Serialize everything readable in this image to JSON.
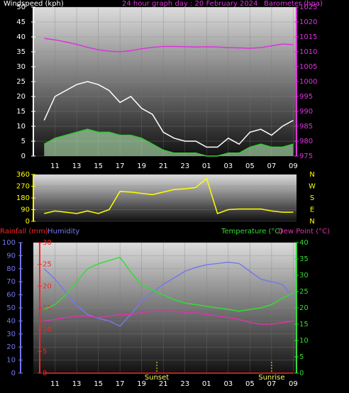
{
  "chart_data": [
    {
      "type": "line",
      "title": "24 hour graph day : 20 February 2024",
      "x": [
        10,
        11,
        12,
        13,
        14,
        15,
        16,
        17,
        18,
        19,
        20,
        21,
        22,
        23,
        24,
        25,
        26,
        27,
        28,
        29,
        30,
        31,
        32,
        33
      ],
      "xlim": [
        9,
        33.3
      ],
      "xticks": [
        11,
        13,
        15,
        17,
        19,
        21,
        23,
        {
          "value": 25,
          "label": "01"
        },
        {
          "value": 27,
          "label": "03"
        },
        {
          "value": 29,
          "label": "05"
        },
        {
          "value": 31,
          "label": "07"
        },
        {
          "value": 33,
          "label": "09"
        }
      ],
      "grid": true,
      "axes": [
        {
          "label": "Windspeed (kph)",
          "color": "#ffffff",
          "lim": [
            0,
            50
          ],
          "ticks": [
            0,
            5,
            10,
            15,
            20,
            25,
            30,
            35,
            40,
            45,
            50
          ]
        },
        {
          "label": "Barometer (hpa)",
          "color": "#dd33dd",
          "lim": [
            975,
            1025
          ],
          "ticks": [
            975,
            980,
            985,
            990,
            995,
            1000,
            1005,
            1010,
            1015,
            1020,
            1025
          ]
        }
      ],
      "series": [
        {
          "color": "#ffffff",
          "axis": 0,
          "values": [
            12,
            20,
            22,
            24,
            25,
            24,
            22,
            18,
            20,
            16,
            14,
            8,
            6,
            5,
            5,
            3,
            3,
            6,
            4,
            8,
            9,
            7,
            10,
            12
          ]
        },
        {
          "color": "#33cc33",
          "fill": "#b8ecb8",
          "axis": 0,
          "values": [
            4,
            6,
            7,
            8,
            9,
            8,
            8,
            7,
            7,
            6,
            4,
            2,
            1,
            1,
            1,
            0,
            0,
            1,
            1,
            3,
            4,
            3,
            3,
            4
          ]
        },
        {
          "color": "#dd33dd",
          "axis": 1,
          "values": [
            1014.5,
            1014,
            1013.3,
            1012.5,
            1011.5,
            1010.7,
            1010.2,
            1010,
            1010.4,
            1011,
            1011.5,
            1011.8,
            1011.8,
            1011.7,
            1011.6,
            1011.7,
            1011.6,
            1011.4,
            1011.3,
            1011.2,
            1011.4,
            1012,
            1012.6,
            1012.4
          ]
        }
      ]
    },
    {
      "type": "line",
      "x": [
        10,
        11,
        12,
        13,
        14,
        15,
        16,
        17,
        18,
        19,
        20,
        21,
        22,
        23,
        24,
        25,
        26,
        27,
        28,
        29,
        30,
        31,
        32,
        33
      ],
      "xlim": [
        9,
        33.3
      ],
      "grid": true,
      "axes": [
        {
          "color": "#ffff00",
          "lim": [
            0,
            360
          ],
          "ticks": [
            0,
            90,
            180,
            270,
            360
          ]
        }
      ],
      "compass": [
        "N",
        "W",
        "S",
        "E",
        "N"
      ],
      "series": [
        {
          "color": "#ffff00",
          "axis": 0,
          "values": [
            60,
            80,
            70,
            60,
            80,
            60,
            90,
            230,
            225,
            215,
            205,
            225,
            245,
            250,
            260,
            330,
            60,
            90,
            95,
            95,
            95,
            80,
            70,
            70
          ]
        }
      ]
    },
    {
      "type": "line",
      "x": [
        10,
        11,
        12,
        13,
        14,
        15,
        16,
        17,
        18,
        19,
        20,
        21,
        22,
        23,
        24,
        25,
        26,
        27,
        28,
        29,
        30,
        31,
        32,
        33
      ],
      "xlim": [
        9,
        33.3
      ],
      "xticks": [
        11,
        13,
        15,
        17,
        19,
        21,
        23,
        {
          "value": 25,
          "label": "01"
        },
        {
          "value": 27,
          "label": "03"
        },
        {
          "value": 29,
          "label": "05"
        },
        {
          "value": 31,
          "label": "07"
        },
        {
          "value": 33,
          "label": "09"
        }
      ],
      "grid": true,
      "axes": [
        {
          "label": "Humidity",
          "color": "#7777ee",
          "lim": [
            0,
            100
          ],
          "ticks": [
            0,
            10,
            20,
            30,
            40,
            50,
            60,
            70,
            80,
            90,
            100
          ]
        },
        {
          "label": "Rainfall (mm)",
          "color": "#ff2222",
          "lim": [
            0,
            30
          ],
          "ticks": [
            0,
            5,
            10,
            15,
            20,
            25,
            30
          ]
        },
        {
          "label": "Temperature (°C)",
          "color": "#33dd33",
          "lim": [
            0,
            40
          ],
          "ticks": [
            0,
            5,
            10,
            15,
            20,
            25,
            30,
            35,
            40
          ]
        }
      ],
      "series": [
        {
          "color": "#7777ee",
          "axis": 0,
          "values": [
            80,
            72,
            62,
            52,
            45,
            42,
            40,
            36,
            45,
            55,
            62,
            68,
            73,
            78,
            81,
            83,
            84,
            85,
            84,
            78,
            72,
            70,
            68,
            58
          ]
        },
        {
          "color": "#ff2222",
          "axis": 1,
          "values": [
            0,
            0,
            0,
            0,
            0,
            0,
            0,
            0,
            0,
            0,
            0,
            0,
            0,
            0,
            0,
            0,
            0,
            0,
            0,
            0,
            0,
            0,
            0,
            0
          ]
        },
        {
          "color": "#33dd33",
          "axis": 2,
          "values": [
            19.5,
            21,
            24,
            28,
            32,
            33.5,
            34.5,
            35.5,
            31,
            27,
            25.5,
            24,
            22.5,
            21.5,
            21,
            20.5,
            20,
            19.5,
            19,
            19.5,
            20,
            21,
            23,
            24.5
          ]
        },
        {
          "name": "Dew Point (°C)",
          "color": "#dd33aa",
          "axis": 2,
          "values": [
            16,
            16.5,
            17,
            17.5,
            17.5,
            17,
            17.5,
            18,
            18,
            18.5,
            19,
            19,
            19,
            18.5,
            18.5,
            18,
            17.5,
            17,
            16.5,
            15.5,
            15,
            15,
            15.5,
            16
          ]
        }
      ],
      "sun_events": [
        {
          "label": "Sunset",
          "x": 20.4
        },
        {
          "label": "Sunrise",
          "x": 31
        }
      ]
    }
  ]
}
